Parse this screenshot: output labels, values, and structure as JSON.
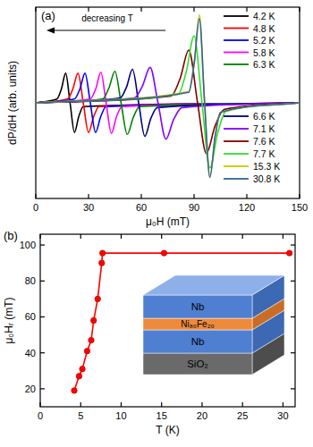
{
  "chart_data": [
    {
      "type": "line",
      "x_label": "μ₀H (mT)",
      "y_label": "dP/dH (arb. units)",
      "annotations": [
        "(a)",
        "decreasing T"
      ],
      "xlim": [
        0,
        150
      ],
      "xticks": [
        0,
        30,
        60,
        90,
        120,
        150
      ],
      "ylim": [
        -1,
        1
      ],
      "tick_labels": "x",
      "grid": false,
      "legend": "right",
      "series": [
        {
          "name": "4.2 K",
          "color": "#000000",
          "x": [
            0,
            12,
            14.5,
            17,
            19.5,
            22,
            24.5,
            27,
            150
          ],
          "values": [
            0,
            0.04,
            0.14,
            0.31,
            0,
            -0.31,
            -0.14,
            -0.04,
            0
          ]
        },
        {
          "name": "4.8 K",
          "color": "#ff0000",
          "x": [
            0,
            18,
            21,
            24,
            27,
            30,
            33,
            36,
            150
          ],
          "values": [
            0,
            0.04,
            0.14,
            0.31,
            0,
            -0.31,
            -0.14,
            -0.04,
            0
          ]
        },
        {
          "name": "5.2 K",
          "color": "#0000ff",
          "x": [
            0,
            22,
            25,
            28,
            31,
            34,
            37,
            40,
            150
          ],
          "values": [
            0,
            0.04,
            0.14,
            0.31,
            0,
            -0.31,
            -0.14,
            -0.04,
            0
          ]
        },
        {
          "name": "5.8 K",
          "color": "#ff00ff",
          "x": [
            0,
            31,
            34,
            37,
            40,
            43,
            46,
            49,
            150
          ],
          "values": [
            0,
            0.04,
            0.14,
            0.32,
            0,
            -0.32,
            -0.14,
            -0.04,
            0
          ]
        },
        {
          "name": "6.3 K",
          "color": "#008000",
          "x": [
            0,
            38,
            41.5,
            45,
            48.5,
            52,
            55.5,
            59,
            150
          ],
          "values": [
            0,
            0.04,
            0.15,
            0.33,
            0,
            -0.33,
            -0.15,
            -0.04,
            0
          ]
        },
        {
          "name": "6.6 K",
          "color": "#000080",
          "x": [
            0,
            48,
            51.5,
            55,
            58.5,
            62,
            65.5,
            69,
            150
          ],
          "values": [
            0,
            0.05,
            0.16,
            0.35,
            0,
            -0.35,
            -0.16,
            -0.05,
            0
          ]
        },
        {
          "name": "7.1 K",
          "color": "#8000ff",
          "x": [
            0,
            56,
            60.5,
            65,
            69.5,
            74,
            78.5,
            83,
            150
          ],
          "values": [
            0,
            0.05,
            0.17,
            0.37,
            0,
            -0.38,
            -0.17,
            -0.05,
            0
          ]
        },
        {
          "name": "7.6 K",
          "color": "#800000",
          "x": [
            0,
            77,
            82,
            87,
            92,
            97,
            102,
            107,
            150
          ],
          "values": [
            0,
            0.07,
            0.25,
            0.55,
            0,
            -0.53,
            -0.24,
            -0.07,
            0
          ]
        },
        {
          "name": "7.7 K",
          "color": "#33dd33",
          "x": [
            0,
            81,
            85.5,
            90,
            94.5,
            99,
            103.5,
            108,
            150
          ],
          "values": [
            0,
            0.09,
            0.32,
            0.7,
            0,
            -0.68,
            -0.31,
            -0.09,
            0
          ]
        },
        {
          "name": "15.3 K",
          "color": "#c8c800",
          "x": [
            0,
            87,
            90,
            93,
            96,
            99,
            102,
            105,
            150
          ],
          "values": [
            0,
            0.12,
            0.41,
            0.92,
            0,
            -0.77,
            -0.35,
            -0.1,
            0
          ]
        },
        {
          "name": "30.8 K",
          "color": "#336699",
          "x": [
            0,
            87,
            90,
            93,
            96,
            99,
            102,
            105,
            150
          ],
          "values": [
            0,
            0.11,
            0.4,
            0.88,
            0,
            -0.78,
            -0.35,
            -0.1,
            0
          ]
        }
      ]
    },
    {
      "type": "line",
      "x_label": "T (K)",
      "y_label": "μ₀Hᵣ (mT)",
      "annotations": [
        "(b)",
        "Nb",
        "Ni₈₀Fe₂₀",
        "Nb",
        "SiO₂"
      ],
      "xlim": [
        0,
        31.5
      ],
      "xticks": [
        0,
        5,
        10,
        15,
        20,
        25,
        30
      ],
      "ylim": [
        10,
        106
      ],
      "yticks": [
        20,
        40,
        60,
        80,
        100
      ],
      "grid": false,
      "color": "#ff0000",
      "marker": "circle",
      "x": [
        4.2,
        4.8,
        5.2,
        5.8,
        6.3,
        6.6,
        7.1,
        7.6,
        7.7,
        15.3,
        30.8
      ],
      "values": [
        19,
        27,
        31,
        41,
        47,
        58,
        70,
        90,
        95.5,
        95.5,
        95.5
      ]
    }
  ]
}
